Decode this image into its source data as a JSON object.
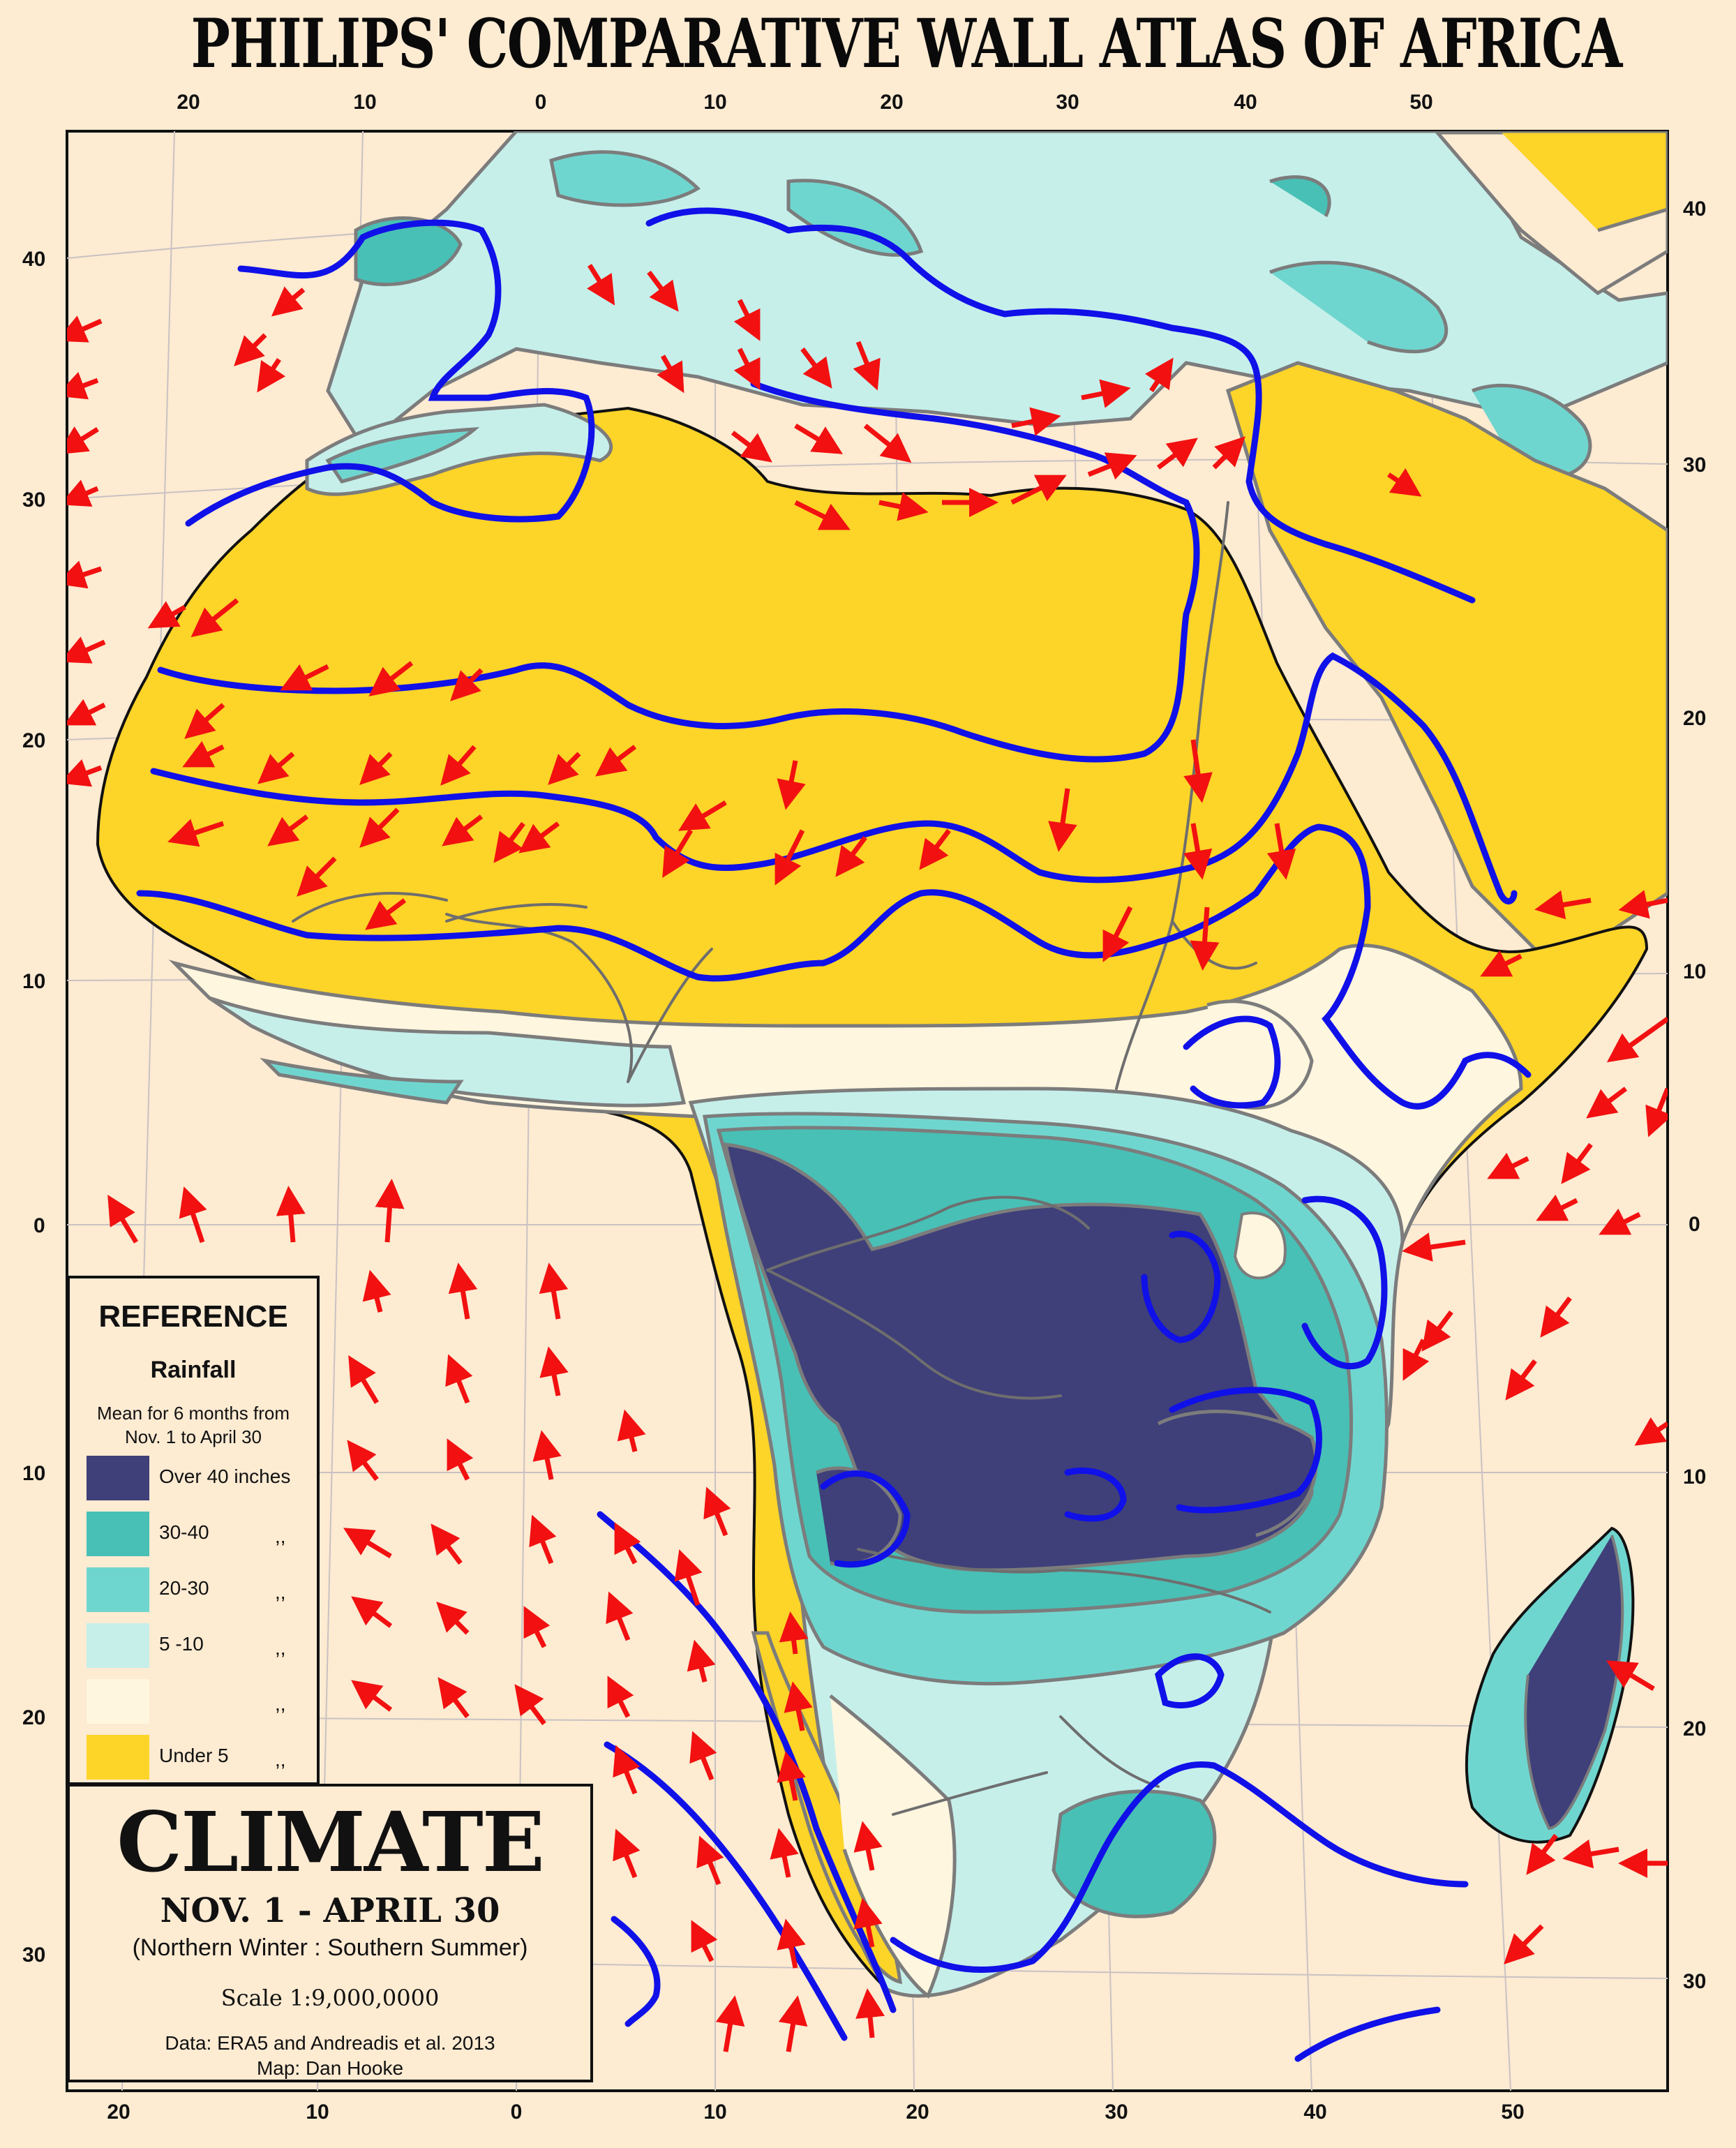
{
  "title": "PHILIPS' COMPARATIVE WALL ATLAS OF AFRICA",
  "graticule": {
    "top": [
      "20",
      "10",
      "0",
      "10",
      "20",
      "30",
      "40",
      "50"
    ],
    "bottom": [
      "20",
      "10",
      "0",
      "10",
      "20",
      "30",
      "40",
      "50"
    ],
    "left": [
      "40",
      "30",
      "20",
      "10",
      "0",
      "10",
      "20",
      "30"
    ],
    "right": [
      "40",
      "30",
      "20",
      "10",
      "0",
      "10",
      "20",
      "30"
    ]
  },
  "legend": {
    "heading": "REFERENCE",
    "subheading": "Rainfall",
    "desc_line1": "Mean for 6 months from",
    "desc_line2": "Nov. 1 to April 30",
    "classes": [
      {
        "label": "Over 40 inches",
        "unit": "",
        "color": "#3f3f7a"
      },
      {
        "label": "30-40",
        "unit": ",,",
        "color": "#48c0b6"
      },
      {
        "label": "20-30",
        "unit": ",,",
        "color": "#6fd6cf"
      },
      {
        "label": "5 -10",
        "unit": ",,",
        "color": "#c6efea"
      },
      {
        "label": "",
        "unit": ",,",
        "color": "#fff6df"
      },
      {
        "label": "Under 5",
        "unit": ",,",
        "color": "#fdd428"
      }
    ]
  },
  "titlebox": {
    "heading": "CLIMATE",
    "dates": "NOV. 1 - APRIL 30",
    "season": "(Northern Winter : Southern Summer)",
    "scale": "Scale 1:9,000,0000",
    "credit_data": "Data: ERA5 and Andreadis et al. 2013",
    "credit_map": "Map: Dan Hooke"
  },
  "colors": {
    "background": "#fdebd2",
    "isobar": "#1010e8",
    "wind_arrow": "#f21010",
    "river": "#6e6e6e"
  }
}
